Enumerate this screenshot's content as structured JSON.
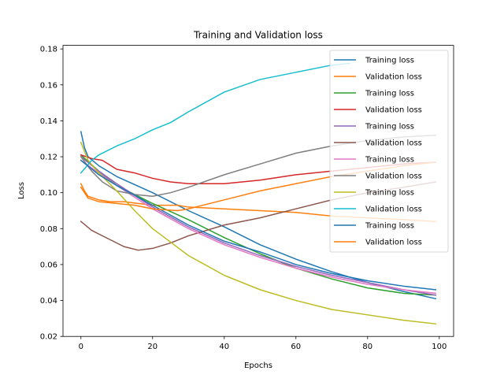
{
  "chart_data": {
    "type": "line",
    "title": "Training and Validation loss",
    "xlabel": "Epochs",
    "ylabel": "Loss",
    "xlim": [
      -5,
      104
    ],
    "ylim": [
      0.02,
      0.182
    ],
    "xticks": [
      0,
      20,
      40,
      60,
      80,
      100
    ],
    "yticks": [
      0.02,
      0.04,
      0.06,
      0.08,
      0.1,
      0.12,
      0.14,
      0.16,
      0.18
    ],
    "ytick_labels": [
      "0.02",
      "0.04",
      "0.06",
      "0.08",
      "0.10",
      "0.12",
      "0.14",
      "0.16",
      "0.18"
    ],
    "grid": false,
    "legend_position": "top-right",
    "series": [
      {
        "name": "Training loss",
        "color": "#1f77b4",
        "points": [
          [
            0,
            0.134
          ],
          [
            1,
            0.125
          ],
          [
            2,
            0.12
          ],
          [
            5,
            0.115
          ],
          [
            10,
            0.109
          ],
          [
            20,
            0.1
          ],
          [
            30,
            0.09
          ],
          [
            40,
            0.081
          ],
          [
            50,
            0.071
          ],
          [
            60,
            0.063
          ],
          [
            70,
            0.056
          ],
          [
            80,
            0.05
          ],
          [
            90,
            0.045
          ],
          [
            99,
            0.041
          ]
        ]
      },
      {
        "name": "Validation loss",
        "color": "#ff7f0e",
        "points": [
          [
            0,
            0.105
          ],
          [
            1,
            0.101
          ],
          [
            2,
            0.098
          ],
          [
            5,
            0.096
          ],
          [
            8,
            0.095
          ],
          [
            12,
            0.095
          ],
          [
            20,
            0.093
          ],
          [
            27,
            0.093
          ],
          [
            30,
            0.092
          ],
          [
            40,
            0.091
          ],
          [
            50,
            0.09
          ],
          [
            60,
            0.089
          ],
          [
            70,
            0.087
          ],
          [
            80,
            0.086
          ],
          [
            90,
            0.085
          ],
          [
            99,
            0.084
          ]
        ]
      },
      {
        "name": "Training loss",
        "color": "#2ca02c",
        "points": [
          [
            0,
            0.121
          ],
          [
            5,
            0.112
          ],
          [
            10,
            0.104
          ],
          [
            20,
            0.094
          ],
          [
            30,
            0.085
          ],
          [
            40,
            0.075
          ],
          [
            50,
            0.066
          ],
          [
            60,
            0.058
          ],
          [
            70,
            0.052
          ],
          [
            80,
            0.047
          ],
          [
            90,
            0.044
          ],
          [
            99,
            0.043
          ]
        ]
      },
      {
        "name": "Validation loss",
        "color": "#d62728",
        "points": [
          [
            0,
            0.121
          ],
          [
            3,
            0.119
          ],
          [
            6,
            0.118
          ],
          [
            10,
            0.113
          ],
          [
            15,
            0.111
          ],
          [
            20,
            0.108
          ],
          [
            25,
            0.106
          ],
          [
            30,
            0.105
          ],
          [
            40,
            0.105
          ],
          [
            50,
            0.107
          ],
          [
            60,
            0.11
          ],
          [
            70,
            0.112
          ],
          [
            80,
            0.114
          ],
          [
            90,
            0.116
          ],
          [
            99,
            0.117
          ]
        ]
      },
      {
        "name": "Training loss",
        "color": "#9467bd",
        "points": [
          [
            0,
            0.12
          ],
          [
            5,
            0.112
          ],
          [
            10,
            0.105
          ],
          [
            20,
            0.092
          ],
          [
            30,
            0.081
          ],
          [
            40,
            0.072
          ],
          [
            50,
            0.065
          ],
          [
            60,
            0.059
          ],
          [
            70,
            0.054
          ],
          [
            80,
            0.05
          ],
          [
            90,
            0.046
          ],
          [
            99,
            0.043
          ]
        ]
      },
      {
        "name": "Validation loss",
        "color": "#8c564b",
        "points": [
          [
            0,
            0.084
          ],
          [
            3,
            0.079
          ],
          [
            8,
            0.074
          ],
          [
            12,
            0.07
          ],
          [
            16,
            0.068
          ],
          [
            20,
            0.069
          ],
          [
            25,
            0.072
          ],
          [
            30,
            0.076
          ],
          [
            40,
            0.082
          ],
          [
            50,
            0.086
          ],
          [
            60,
            0.091
          ],
          [
            70,
            0.096
          ],
          [
            80,
            0.1
          ],
          [
            90,
            0.103
          ],
          [
            99,
            0.106
          ]
        ]
      },
      {
        "name": "Training loss",
        "color": "#e377c2",
        "points": [
          [
            0,
            0.118
          ],
          [
            5,
            0.111
          ],
          [
            10,
            0.104
          ],
          [
            20,
            0.091
          ],
          [
            30,
            0.08
          ],
          [
            40,
            0.071
          ],
          [
            50,
            0.064
          ],
          [
            60,
            0.058
          ],
          [
            70,
            0.053
          ],
          [
            80,
            0.049
          ],
          [
            90,
            0.046
          ],
          [
            99,
            0.044
          ]
        ]
      },
      {
        "name": "Validation loss",
        "color": "#7f7f7f",
        "points": [
          [
            0,
            0.12
          ],
          [
            3,
            0.112
          ],
          [
            6,
            0.106
          ],
          [
            10,
            0.101
          ],
          [
            15,
            0.099
          ],
          [
            20,
            0.098
          ],
          [
            25,
            0.1
          ],
          [
            30,
            0.103
          ],
          [
            40,
            0.11
          ],
          [
            50,
            0.116
          ],
          [
            60,
            0.122
          ],
          [
            70,
            0.126
          ],
          [
            80,
            0.129
          ],
          [
            90,
            0.131
          ],
          [
            99,
            0.132
          ]
        ]
      },
      {
        "name": "Training loss",
        "color": "#bcbd22",
        "points": [
          [
            0,
            0.128
          ],
          [
            2,
            0.118
          ],
          [
            5,
            0.111
          ],
          [
            10,
            0.101
          ],
          [
            15,
            0.09
          ],
          [
            20,
            0.08
          ],
          [
            30,
            0.065
          ],
          [
            40,
            0.054
          ],
          [
            50,
            0.046
          ],
          [
            60,
            0.04
          ],
          [
            70,
            0.035
          ],
          [
            80,
            0.032
          ],
          [
            90,
            0.029
          ],
          [
            99,
            0.027
          ]
        ]
      },
      {
        "name": "Validation loss",
        "color": "#17becf",
        "points": [
          [
            0,
            0.111
          ],
          [
            3,
            0.118
          ],
          [
            5,
            0.121
          ],
          [
            10,
            0.126
          ],
          [
            15,
            0.13
          ],
          [
            20,
            0.135
          ],
          [
            25,
            0.139
          ],
          [
            30,
            0.145
          ],
          [
            40,
            0.156
          ],
          [
            50,
            0.163
          ],
          [
            60,
            0.167
          ],
          [
            70,
            0.171
          ],
          [
            75,
            0.172
          ]
        ]
      },
      {
        "name": "Training loss",
        "color": "#1f77b4",
        "points": [
          [
            0,
            0.118
          ],
          [
            5,
            0.11
          ],
          [
            10,
            0.104
          ],
          [
            20,
            0.093
          ],
          [
            30,
            0.082
          ],
          [
            40,
            0.073
          ],
          [
            50,
            0.067
          ],
          [
            60,
            0.06
          ],
          [
            70,
            0.055
          ],
          [
            80,
            0.051
          ],
          [
            90,
            0.048
          ],
          [
            99,
            0.046
          ]
        ]
      },
      {
        "name": "Validation loss",
        "color": "#ff7f0e",
        "points": [
          [
            0,
            0.103
          ],
          [
            2,
            0.097
          ],
          [
            5,
            0.095
          ],
          [
            10,
            0.094
          ],
          [
            15,
            0.093
          ],
          [
            20,
            0.091
          ],
          [
            27,
            0.09
          ],
          [
            30,
            0.091
          ],
          [
            40,
            0.096
          ],
          [
            50,
            0.101
          ],
          [
            60,
            0.105
          ],
          [
            70,
            0.109
          ],
          [
            80,
            0.112
          ],
          [
            90,
            0.115
          ],
          [
            99,
            0.117
          ]
        ]
      }
    ]
  }
}
